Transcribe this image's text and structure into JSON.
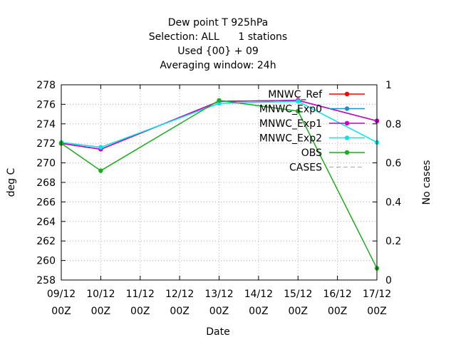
{
  "chart_data": {
    "type": "line",
    "title_lines": [
      "Dew point T 925hPa",
      "Selection: ALL      1 stations",
      "Used {00} + 09",
      "Averaging window: 24h"
    ],
    "xlabel": "Date",
    "ylabel": "deg C",
    "y2label": "No cases",
    "ylim": [
      258,
      278
    ],
    "y2lim": [
      0,
      1
    ],
    "yticks": [
      258,
      260,
      262,
      264,
      266,
      268,
      270,
      272,
      274,
      276,
      278
    ],
    "y2ticks": [
      "0",
      "0.2",
      "0.4",
      "0.6",
      "0.8",
      "1"
    ],
    "categories": [
      {
        "date": "09/12",
        "hour": "00Z"
      },
      {
        "date": "10/12",
        "hour": "00Z"
      },
      {
        "date": "11/12",
        "hour": "00Z"
      },
      {
        "date": "12/12",
        "hour": "00Z"
      },
      {
        "date": "13/12",
        "hour": "00Z"
      },
      {
        "date": "14/12",
        "hour": "00Z"
      },
      {
        "date": "15/12",
        "hour": "00Z"
      },
      {
        "date": "16/12",
        "hour": "00Z"
      },
      {
        "date": "17/12",
        "hour": "00Z"
      }
    ],
    "grid": true,
    "legend_position": "top-right",
    "series": [
      {
        "name": "MNWC_Ref",
        "color": "#ff0000",
        "x": [
          0,
          1,
          4,
          6,
          8
        ],
        "values": [
          272.0,
          271.4,
          276.3,
          276.4,
          274.3
        ]
      },
      {
        "name": "MNWC_Exp0",
        "color": "#1e90c8",
        "x": [
          0,
          1,
          4,
          6,
          8
        ],
        "values": [
          272.0,
          271.4,
          276.3,
          276.4,
          274.3
        ]
      },
      {
        "name": "MNWC_Exp1",
        "color": "#cc00cc",
        "x": [
          0,
          1,
          4,
          6,
          8
        ],
        "values": [
          272.0,
          271.4,
          276.3,
          276.4,
          274.3
        ]
      },
      {
        "name": "MNWC_Exp2",
        "color": "#00e5e5",
        "x": [
          0,
          1,
          4,
          6,
          8
        ],
        "values": [
          272.1,
          271.6,
          276.1,
          276.3,
          272.1
        ]
      },
      {
        "name": "OBS",
        "color": "#1faa1f",
        "x": [
          0,
          1,
          4,
          6,
          8
        ],
        "values": [
          272.0,
          269.2,
          276.4,
          275.3,
          259.2
        ]
      },
      {
        "name": "CASES",
        "color": "#aaaaaa",
        "x": [],
        "values": []
      }
    ]
  }
}
